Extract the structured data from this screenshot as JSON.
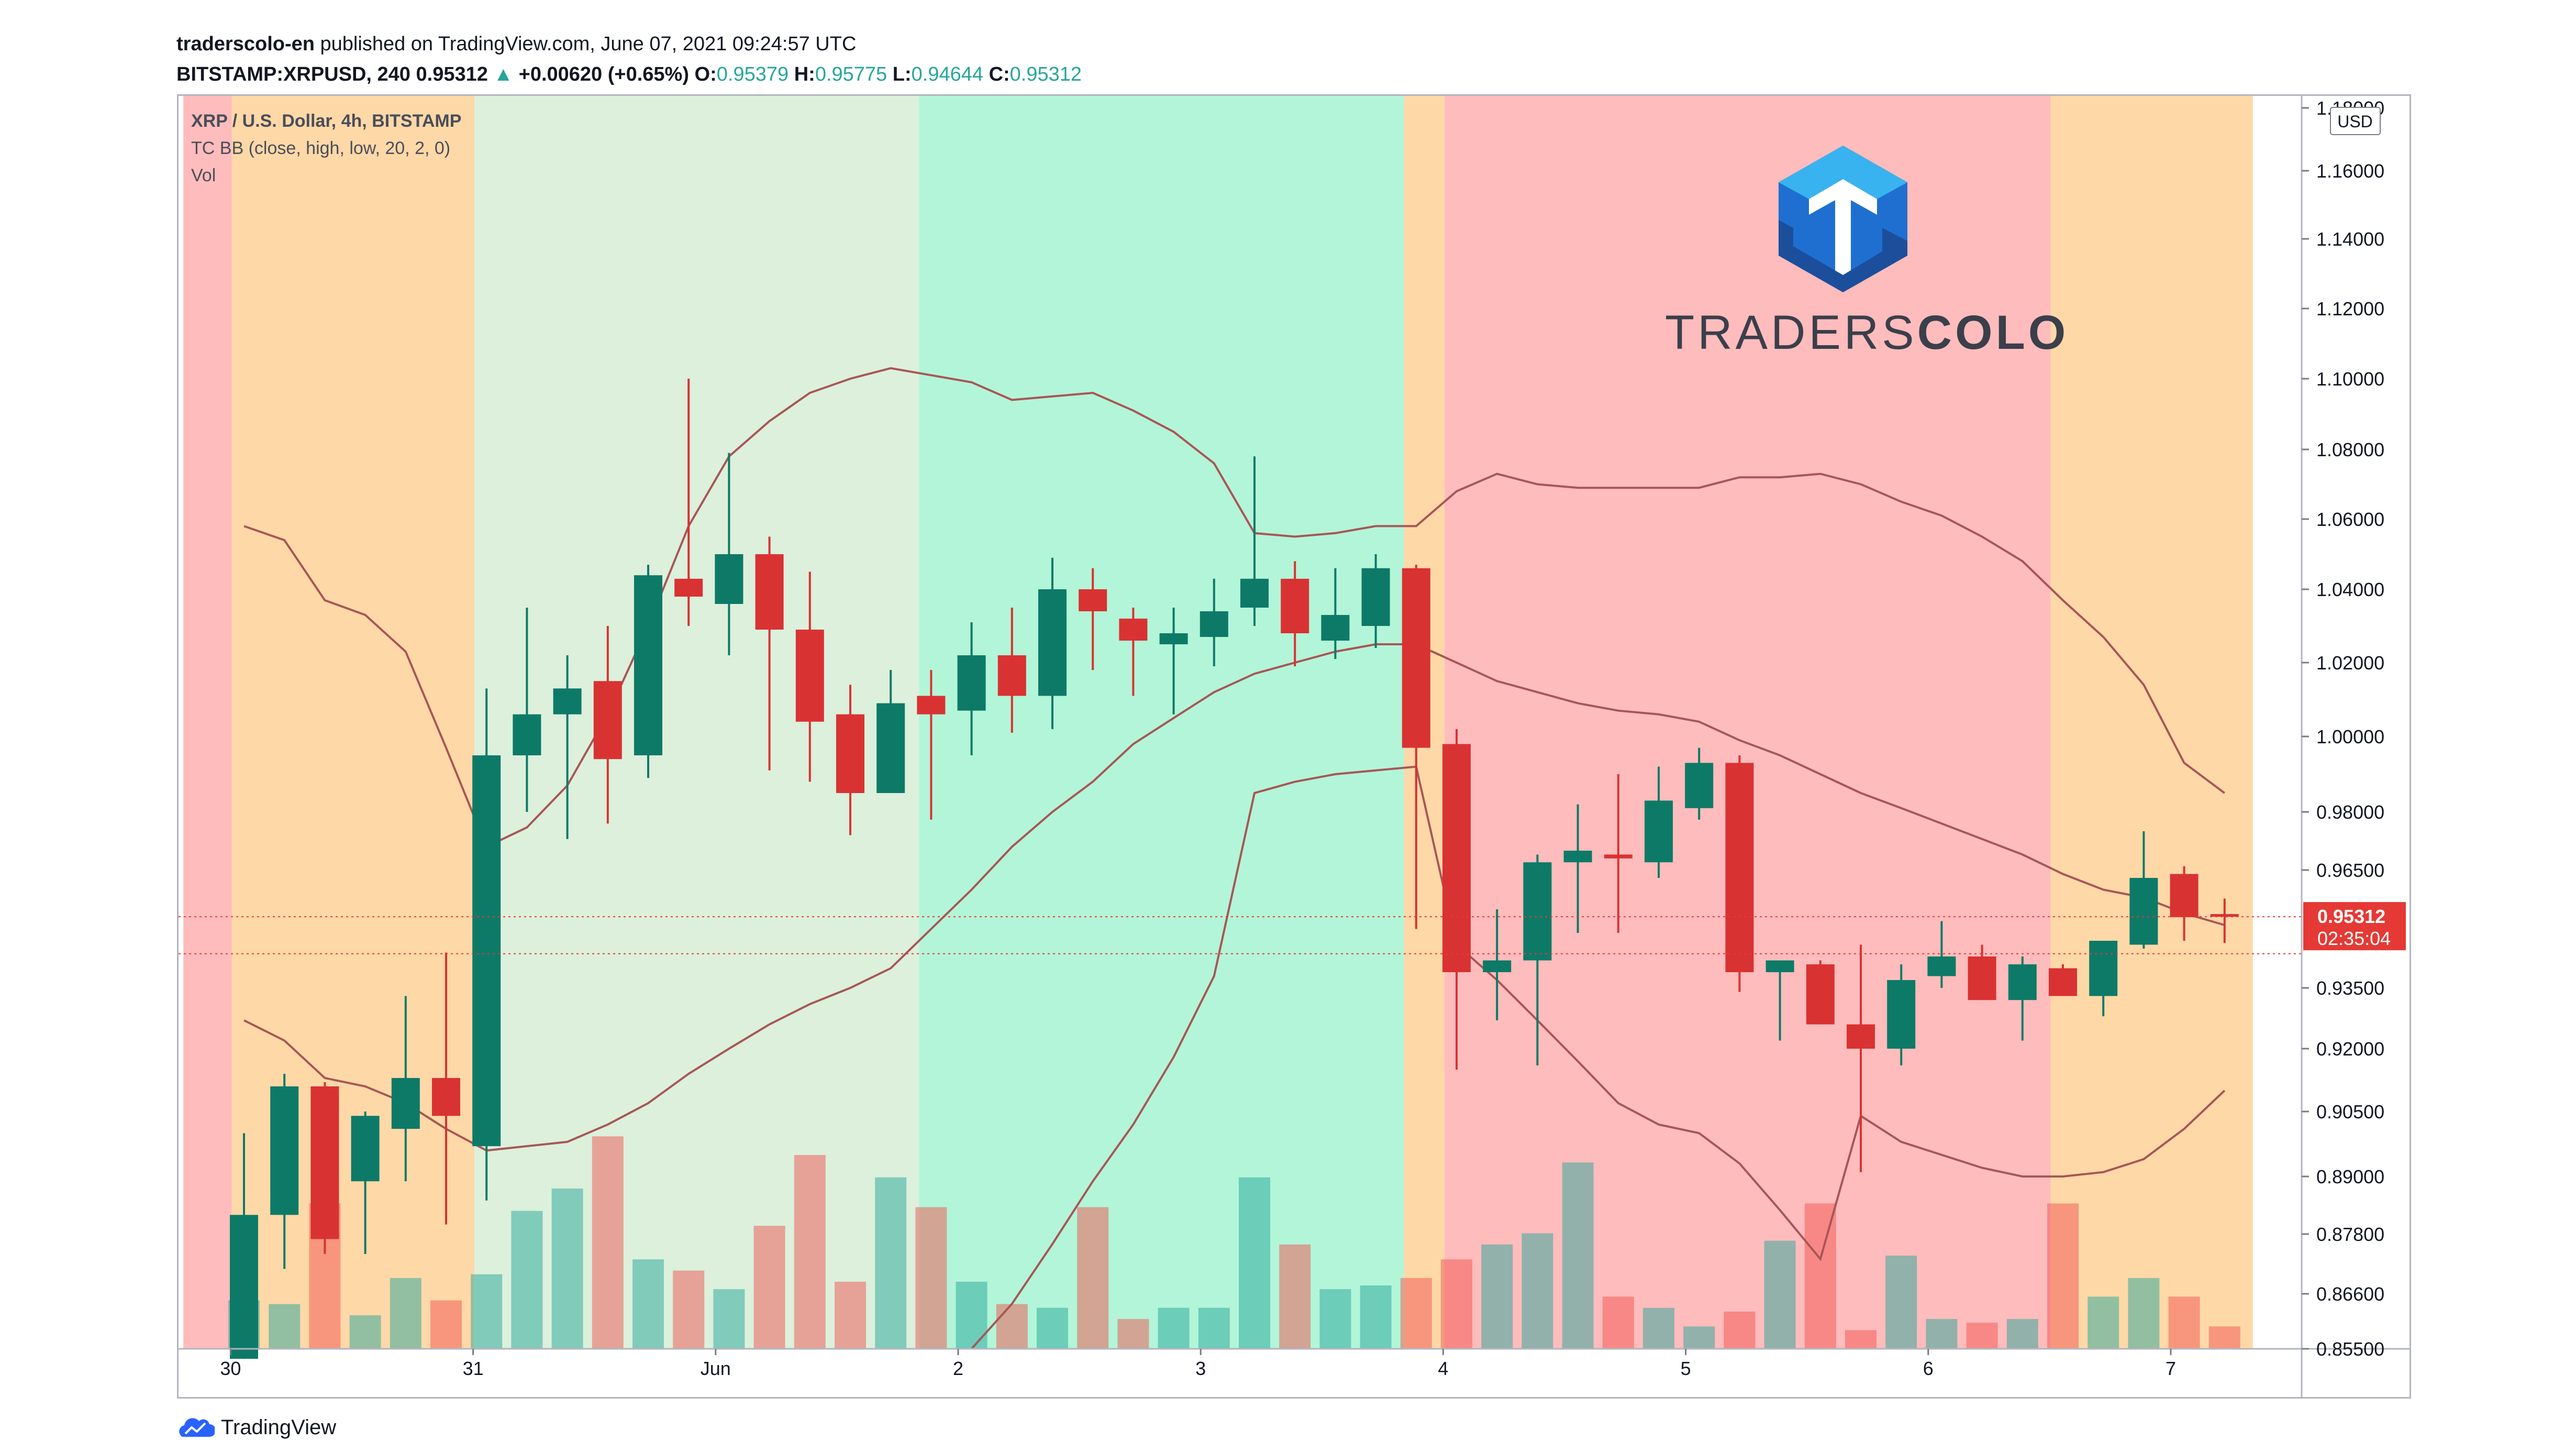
{
  "header": {
    "author": "traderscolo-en",
    "published_text": "published on TradingView.com, June 07, 2021 09:24:57 UTC",
    "symbol": "BITSTAMP:XRPUSD, 240",
    "last": "0.95312",
    "change_arrow": "▲",
    "change": "+0.00620 (+0.65%)",
    "o_label": "O:",
    "o": "0.95379",
    "h_label": "H:",
    "h": "0.95775",
    "l_label": "L:",
    "l": "0.94644",
    "c_label": "C:",
    "c": "0.95312"
  },
  "legend": {
    "title": "XRP / U.S. Dollar, 4h, BITSTAMP",
    "indicator": "TC BB (close, high, low, 20, 2, 0)",
    "volume": "Vol"
  },
  "brand": {
    "part1": "TRADERS",
    "part2": "COLO",
    "logo_icon": "traderscolo-hexagon-logo"
  },
  "footer": {
    "label": "TradingView",
    "icon": "tradingview-cloud-logo"
  },
  "price_axis": {
    "currency": "USD",
    "ticks": [
      "1.18000",
      "1.16000",
      "1.14000",
      "1.12000",
      "1.10000",
      "1.08000",
      "1.06000",
      "1.04000",
      "1.02000",
      "1.00000",
      "0.98000",
      "0.96500",
      "0.93500",
      "0.92000",
      "0.90500",
      "0.89000",
      "0.87800",
      "0.86600",
      "0.85500"
    ],
    "last_price_label": "0.95312",
    "countdown_label": "02:35:04"
  },
  "colors": {
    "up": "#0d7a67",
    "down": "#d93232",
    "zone_red": "#ffbcbc",
    "zone_orange": "#ffd8a8",
    "zone_lightgreen": "#dcf0dc",
    "zone_mint": "#b3f5d8",
    "band": "#a85656",
    "price_label": "#e53935"
  },
  "chart_data": {
    "type": "candlestick",
    "timeframe": "4h",
    "x_tick_labels": [
      {
        "label": "30",
        "bar": -0.5
      },
      {
        "label": "31",
        "bar": 5.5
      },
      {
        "label": "Jun",
        "bar": 11.5
      },
      {
        "label": "2",
        "bar": 17.5
      },
      {
        "label": "3",
        "bar": 23.5
      },
      {
        "label": "4",
        "bar": 29.5
      },
      {
        "label": "5",
        "bar": 35.5
      },
      {
        "label": "6",
        "bar": 41.5
      },
      {
        "label": "7",
        "bar": 47.5
      }
    ],
    "zones": [
      {
        "from": -1.5,
        "to": -0.3,
        "color": "zone_red"
      },
      {
        "from": -0.3,
        "to": 5.7,
        "color": "zone_orange"
      },
      {
        "from": 5.7,
        "to": 16.7,
        "color": "zone_lightgreen"
      },
      {
        "from": 16.7,
        "to": 28.7,
        "color": "zone_mint"
      },
      {
        "from": 28.7,
        "to": 29.7,
        "color": "zone_orange"
      },
      {
        "from": 29.7,
        "to": 44.7,
        "color": "zone_red"
      },
      {
        "from": 44.7,
        "to": 49.7,
        "color": "zone_orange"
      }
    ],
    "candles": [
      {
        "o": 0.853,
        "h": 0.9,
        "l": 0.853,
        "c": 0.882
      },
      {
        "o": 0.882,
        "h": 0.914,
        "l": 0.871,
        "c": 0.911
      },
      {
        "o": 0.911,
        "h": 0.912,
        "l": 0.874,
        "c": 0.877
      },
      {
        "o": 0.889,
        "h": 0.905,
        "l": 0.874,
        "c": 0.904
      },
      {
        "o": 0.901,
        "h": 0.933,
        "l": 0.889,
        "c": 0.913
      },
      {
        "o": 0.913,
        "h": 0.944,
        "l": 0.88,
        "c": 0.904
      },
      {
        "o": 0.897,
        "h": 1.013,
        "l": 0.885,
        "c": 0.995
      },
      {
        "o": 0.995,
        "h": 1.035,
        "l": 0.98,
        "c": 1.006
      },
      {
        "o": 1.006,
        "h": 1.022,
        "l": 0.973,
        "c": 1.013
      },
      {
        "o": 1.015,
        "h": 1.03,
        "l": 0.977,
        "c": 0.994
      },
      {
        "o": 0.995,
        "h": 1.047,
        "l": 0.989,
        "c": 1.044
      },
      {
        "o": 1.043,
        "h": 1.1,
        "l": 1.03,
        "c": 1.038
      },
      {
        "o": 1.036,
        "h": 1.079,
        "l": 1.022,
        "c": 1.05
      },
      {
        "o": 1.05,
        "h": 1.055,
        "l": 0.991,
        "c": 1.029
      },
      {
        "o": 1.029,
        "h": 1.045,
        "l": 0.988,
        "c": 1.004
      },
      {
        "o": 1.006,
        "h": 1.014,
        "l": 0.974,
        "c": 0.985
      },
      {
        "o": 0.985,
        "h": 1.018,
        "l": 0.985,
        "c": 1.009
      },
      {
        "o": 1.011,
        "h": 1.018,
        "l": 0.978,
        "c": 1.006
      },
      {
        "o": 1.007,
        "h": 1.031,
        "l": 0.995,
        "c": 1.022
      },
      {
        "o": 1.022,
        "h": 1.035,
        "l": 1.001,
        "c": 1.011
      },
      {
        "o": 1.011,
        "h": 1.049,
        "l": 1.002,
        "c": 1.04
      },
      {
        "o": 1.04,
        "h": 1.046,
        "l": 1.018,
        "c": 1.034
      },
      {
        "o": 1.032,
        "h": 1.035,
        "l": 1.011,
        "c": 1.026
      },
      {
        "o": 1.025,
        "h": 1.035,
        "l": 1.006,
        "c": 1.028
      },
      {
        "o": 1.027,
        "h": 1.043,
        "l": 1.019,
        "c": 1.034
      },
      {
        "o": 1.035,
        "h": 1.078,
        "l": 1.03,
        "c": 1.043
      },
      {
        "o": 1.043,
        "h": 1.048,
        "l": 1.019,
        "c": 1.028
      },
      {
        "o": 1.026,
        "h": 1.046,
        "l": 1.021,
        "c": 1.033
      },
      {
        "o": 1.03,
        "h": 1.05,
        "l": 1.024,
        "c": 1.046
      },
      {
        "o": 1.046,
        "h": 1.047,
        "l": 0.95,
        "c": 0.997
      },
      {
        "o": 0.998,
        "h": 1.002,
        "l": 0.915,
        "c": 0.939
      },
      {
        "o": 0.939,
        "h": 0.955,
        "l": 0.927,
        "c": 0.942
      },
      {
        "o": 0.942,
        "h": 0.969,
        "l": 0.916,
        "c": 0.967
      },
      {
        "o": 0.967,
        "h": 0.982,
        "l": 0.949,
        "c": 0.97
      },
      {
        "o": 0.969,
        "h": 0.99,
        "l": 0.949,
        "c": 0.968
      },
      {
        "o": 0.967,
        "h": 0.992,
        "l": 0.963,
        "c": 0.983
      },
      {
        "o": 0.981,
        "h": 0.997,
        "l": 0.978,
        "c": 0.993
      },
      {
        "o": 0.993,
        "h": 0.995,
        "l": 0.934,
        "c": 0.939
      },
      {
        "o": 0.939,
        "h": 0.942,
        "l": 0.922,
        "c": 0.942
      },
      {
        "o": 0.941,
        "h": 0.942,
        "l": 0.926,
        "c": 0.926
      },
      {
        "o": 0.926,
        "h": 0.946,
        "l": 0.891,
        "c": 0.92
      },
      {
        "o": 0.92,
        "h": 0.941,
        "l": 0.916,
        "c": 0.937
      },
      {
        "o": 0.938,
        "h": 0.952,
        "l": 0.935,
        "c": 0.943
      },
      {
        "o": 0.943,
        "h": 0.946,
        "l": 0.932,
        "c": 0.932
      },
      {
        "o": 0.932,
        "h": 0.943,
        "l": 0.922,
        "c": 0.941
      },
      {
        "o": 0.94,
        "h": 0.941,
        "l": 0.933,
        "c": 0.933
      },
      {
        "o": 0.933,
        "h": 0.947,
        "l": 0.928,
        "c": 0.947
      },
      {
        "o": 0.946,
        "h": 0.975,
        "l": 0.945,
        "c": 0.963
      },
      {
        "o": 0.964,
        "h": 0.966,
        "l": 0.947,
        "c": 0.953
      },
      {
        "o": 0.95379,
        "h": 0.95775,
        "l": 0.94644,
        "c": 0.95312
      }
    ],
    "volume_relative": [
      0.13,
      0.12,
      0.39,
      0.09,
      0.19,
      0.13,
      0.2,
      0.37,
      0.43,
      0.57,
      0.24,
      0.21,
      0.16,
      0.33,
      0.52,
      0.18,
      0.46,
      0.38,
      0.18,
      0.12,
      0.11,
      0.38,
      0.08,
      0.11,
      0.11,
      0.46,
      0.28,
      0.16,
      0.17,
      0.19,
      0.24,
      0.28,
      0.31,
      0.5,
      0.14,
      0.11,
      0.06,
      0.1,
      0.29,
      0.39,
      0.05,
      0.25,
      0.08,
      0.07,
      0.08,
      0.39,
      0.14,
      0.19,
      0.14,
      0.06
    ],
    "bollinger": {
      "upper": [
        1.058,
        1.054,
        1.037,
        1.033,
        1.023,
        0.997,
        0.971,
        0.976,
        0.987,
        1.006,
        1.03,
        1.058,
        1.078,
        1.088,
        1.096,
        1.1,
        1.103,
        1.101,
        1.099,
        1.094,
        1.095,
        1.096,
        1.091,
        1.085,
        1.076,
        1.056,
        1.055,
        1.056,
        1.058,
        1.058,
        1.068,
        1.073,
        1.07,
        1.069,
        1.069,
        1.069,
        1.069,
        1.072,
        1.072,
        1.073,
        1.07,
        1.065,
        1.061,
        1.055,
        1.048,
        1.037,
        1.027,
        1.014,
        0.993,
        0.985
      ],
      "basis": [
        0.927,
        0.922,
        0.913,
        0.911,
        0.907,
        0.901,
        0.896,
        0.897,
        0.898,
        0.902,
        0.907,
        0.914,
        0.92,
        0.926,
        0.931,
        0.935,
        0.94,
        0.95,
        0.96,
        0.971,
        0.98,
        0.988,
        0.998,
        1.005,
        1.012,
        1.017,
        1.02,
        1.023,
        1.025,
        1.025,
        1.02,
        1.015,
        1.012,
        1.009,
        1.007,
        1.006,
        1.004,
        0.999,
        0.995,
        0.99,
        0.985,
        0.981,
        0.977,
        0.973,
        0.969,
        0.964,
        0.96,
        0.958,
        0.954,
        0.951
      ],
      "lower": [
        null,
        null,
        null,
        null,
        null,
        null,
        null,
        null,
        null,
        null,
        null,
        null,
        null,
        null,
        null,
        null,
        null,
        null,
        0.854,
        0.864,
        0.876,
        0.889,
        0.902,
        0.918,
        0.938,
        0.985,
        0.988,
        0.99,
        0.991,
        0.992,
        0.946,
        0.937,
        0.927,
        0.917,
        0.907,
        0.902,
        0.9,
        0.893,
        0.883,
        0.873,
        0.904,
        0.898,
        0.895,
        0.892,
        0.89,
        0.89,
        0.891,
        0.894,
        0.901,
        0.91
      ]
    },
    "last_price": 0.95312,
    "last_price_line_2": 0.9437
  }
}
